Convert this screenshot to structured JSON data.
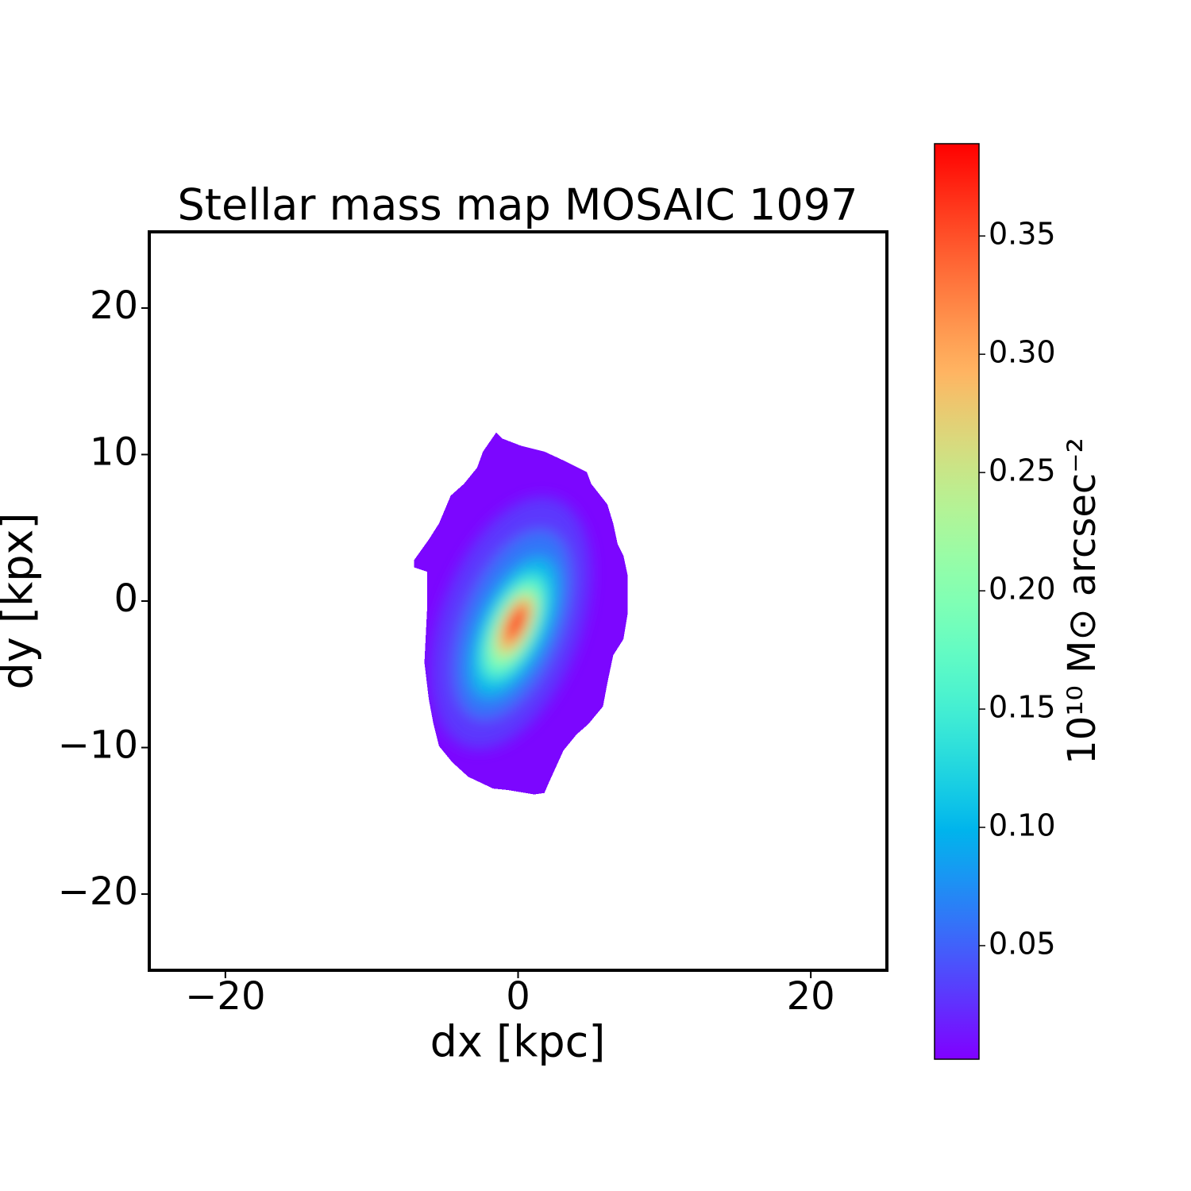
{
  "chart_data": {
    "type": "image",
    "title": "Stellar mass map MOSAIC 1097",
    "x_label": "dx [kpc]",
    "y_label": "dy [kpx]",
    "xlim": [
      -25.2,
      25.2
    ],
    "ylim": [
      -25.2,
      25.2
    ],
    "xticks": [
      {
        "value": -20,
        "label": "−20"
      },
      0,
      20
    ],
    "yticks": [
      {
        "value": -20,
        "label": "−20"
      },
      {
        "value": -10,
        "label": "−10"
      },
      0,
      10,
      20
    ],
    "colormap": "rainbow",
    "clim": [
      0.002,
      0.389
    ],
    "colorbar_ticks": [
      0.05,
      {
        "value": 0.1,
        "label": "0.10"
      },
      0.15,
      {
        "value": 0.2,
        "label": "0.20"
      },
      0.25,
      {
        "value": 0.3,
        "label": "0.30"
      },
      0.35
    ],
    "colorbar_label": "10¹⁰ M⊙ arcsec⁻²",
    "outline": {
      "value": 0.005,
      "x": [
        -1.5,
        -1.1,
        0.2,
        1.8,
        3.1,
        4.7,
        5.0,
        6.1,
        6.5,
        6.8,
        7.2,
        7.5,
        7.5,
        7.2,
        6.5,
        6.1,
        5.8,
        4.8,
        4.0,
        3.1,
        2.6,
        2.1,
        1.8,
        1.1,
        -0.7,
        -1.7,
        -3.4,
        -4.5,
        -5.4,
        -5.8,
        -6.1,
        -6.4,
        -6.2,
        -6.2,
        -7.1,
        -7.1,
        -6.1,
        -5.4,
        -4.6,
        -3.7,
        -2.8,
        -2.4
      ],
      "y": [
        11.5,
        11.1,
        10.6,
        10.2,
        9.6,
        8.8,
        8.0,
        6.6,
        5.3,
        3.9,
        3.1,
        1.7,
        -0.8,
        -2.6,
        -3.7,
        -5.6,
        -7.2,
        -8.4,
        -9.1,
        -10.2,
        -11.3,
        -12.4,
        -13.1,
        -13.2,
        -12.9,
        -12.8,
        -12.0,
        -11.0,
        -9.9,
        -8.3,
        -6.7,
        -4.2,
        -0.2,
        2.0,
        2.3,
        2.8,
        4.2,
        5.3,
        7.2,
        8.0,
        9.1,
        10.2
      ]
    },
    "levels": [
      {
        "value": 0.03,
        "cx": -0.5,
        "cy": -1.5,
        "rx": 4.8,
        "ry": 9.0,
        "angle": 20
      },
      {
        "value": 0.06,
        "cx": -0.4,
        "cy": -1.6,
        "rx": 3.3,
        "ry": 6.8,
        "angle": 22
      },
      {
        "value": 0.1,
        "cx": -0.3,
        "cy": -1.8,
        "rx": 2.3,
        "ry": 5.2,
        "angle": 25
      },
      {
        "value": 0.15,
        "cx": -0.3,
        "cy": -1.8,
        "rx": 1.7,
        "ry": 4.0,
        "angle": 25
      },
      {
        "value": 0.2,
        "cx": -0.3,
        "cy": -1.8,
        "rx": 1.3,
        "ry": 3.1,
        "angle": 25
      },
      {
        "value": 0.25,
        "cx": -0.2,
        "cy": -1.7,
        "rx": 1.0,
        "ry": 2.4,
        "angle": 25
      },
      {
        "value": 0.3,
        "cx": -0.2,
        "cy": -1.6,
        "rx": 0.75,
        "ry": 1.9,
        "angle": 25
      },
      {
        "value": 0.35,
        "cx": -0.1,
        "cy": -1.5,
        "rx": 0.55,
        "ry": 1.4,
        "angle": 25
      },
      {
        "value": 0.385,
        "cx": -0.1,
        "cy": -1.4,
        "rx": 0.35,
        "ry": 0.9,
        "angle": 25
      }
    ]
  }
}
